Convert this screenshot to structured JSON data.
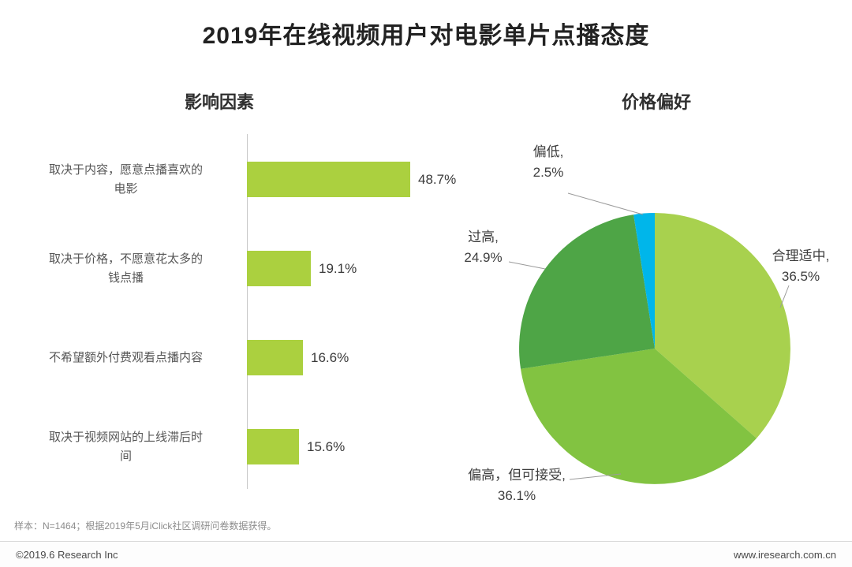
{
  "title": "2019年在线视频用户对电影单片点播态度",
  "colors": {
    "bar": "#abd03f",
    "axis": "#c9c9c9",
    "leader_line": "#9b9b9b"
  },
  "chart_data": [
    {
      "type": "bar",
      "title": "影响因素",
      "orientation": "horizontal",
      "categories": [
        "取决于内容，愿意点播喜欢的电影",
        "取决于价格，不愿意花太多的钱点播",
        "不希望额外付费观看点播内容",
        "取决于视频网站的上线滞后时间"
      ],
      "display_categories": [
        "取决于内容，愿意点播喜欢的\n电影",
        "取决于价格，不愿意花太多的\n钱点播",
        "不希望额外付费观看点播内容",
        "取决于视频网站的上线滞后时\n间"
      ],
      "values": [
        48.7,
        19.1,
        16.6,
        15.6
      ],
      "value_labels": [
        "48.7%",
        "19.1%",
        "16.6%",
        "15.6%"
      ],
      "xlim": [
        0,
        50
      ],
      "unit": "%"
    },
    {
      "type": "pie",
      "title": "价格偏好",
      "start_angle_deg": 0,
      "direction": "clockwise",
      "slices": [
        {
          "label": "合理适中",
          "value": 36.5,
          "display": "合理适中,\n36.5%",
          "color": "#a8d14e"
        },
        {
          "label": "偏高，但可接受",
          "value": 36.1,
          "display": "偏高，但可接受,\n36.1%",
          "color": "#82c341"
        },
        {
          "label": "过高",
          "value": 24.9,
          "display": "过高,\n24.9%",
          "color": "#4ea546"
        },
        {
          "label": "偏低",
          "value": 2.5,
          "display": "偏低,\n2.5%",
          "color": "#00b6ea"
        }
      ]
    }
  ],
  "footer": {
    "note": "样本：N=1464；根据2019年5月iClick社区调研问卷数据获得。",
    "copyright": "©2019.6 Research Inc",
    "website": "www.iresearch.com.cn"
  }
}
